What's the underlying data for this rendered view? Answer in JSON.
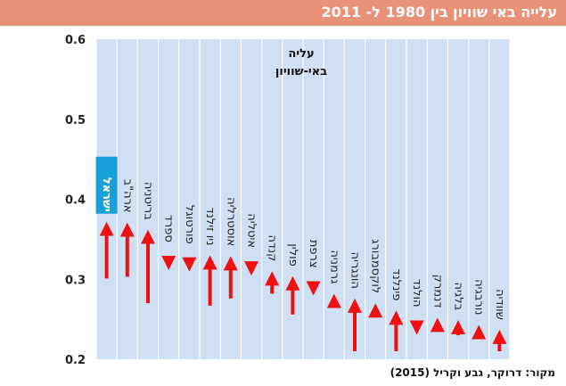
{
  "header": {
    "title": "עלייה באי שוויון בין 1980 ל- 2011",
    "background_color": "#e8927a"
  },
  "source": "מקור: דרוקר, גבע וקריל (2015)",
  "chart_data": {
    "type": "arrow-range",
    "title_lines": [
      "עליה",
      "באי-שוויון"
    ],
    "ylim": [
      0.2,
      0.6
    ],
    "yticks": [
      "0.2",
      "0.3",
      "0.4",
      "0.5",
      "0.6"
    ],
    "grid": "vertical",
    "arrow_color": "#ee1111",
    "panel_color": "#cfe0f5",
    "highlight_color": "#1aa0d8",
    "highlight_index": 0,
    "categories": [
      "ישראל",
      "ארה\"ב",
      "בריטניה",
      "ספרד",
      "פורטוגל",
      "ניו זילנד",
      "אוסטרליה",
      "איטליה",
      "קנדה",
      "פולין",
      "צרפת",
      "גרמניה",
      "הונגריה",
      "לוקסמבורג",
      "פינלנד",
      "הולנד",
      "דנמרק",
      "בלגיה",
      "נורבגיה",
      "שוודיה"
    ],
    "series": [
      {
        "start": [
          0.301,
          0.303,
          0.27,
          0.325,
          0.321,
          0.267,
          0.276,
          0.316,
          0.282,
          0.256,
          0.293,
          0.27,
          0.21,
          0.255,
          0.21,
          0.242,
          0.24,
          0.23,
          0.228,
          0.21
        ],
        "end": [
          0.373,
          0.372,
          0.363,
          0.335,
          0.333,
          0.331,
          0.33,
          0.328,
          0.311,
          0.305,
          0.303,
          0.283,
          0.277,
          0.271,
          0.262,
          0.254,
          0.253,
          0.25,
          0.244,
          0.238
        ]
      }
    ]
  }
}
